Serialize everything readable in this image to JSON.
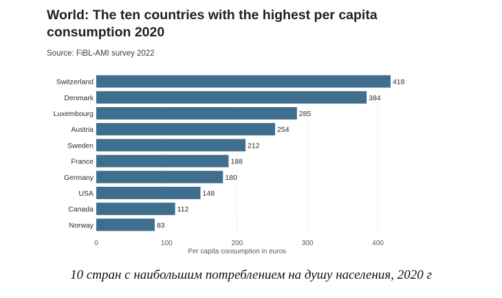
{
  "title": "World: The ten countries with the highest per capita consumption 2020",
  "source": "Source: FiBL-AMI survey 2022",
  "caption": "10 стран с наибольшим потреблением на душу населения, 2020 г",
  "chart_data": {
    "type": "bar",
    "orientation": "horizontal",
    "title": "World: The ten countries with the highest per capita consumption 2020",
    "xlabel": "Per capita consumption in euros",
    "ylabel": "",
    "categories": [
      "Switzerland",
      "Denmark",
      "Luxembourg",
      "Austria",
      "Sweden",
      "France",
      "Germany",
      "USA",
      "Canada",
      "Norway"
    ],
    "values": [
      418,
      384,
      285,
      254,
      212,
      188,
      180,
      148,
      112,
      83
    ],
    "xlim": [
      0,
      420
    ],
    "xticks": [
      0,
      100,
      200,
      300,
      400
    ],
    "grid": true,
    "bar_color": "#3f6e8f"
  }
}
